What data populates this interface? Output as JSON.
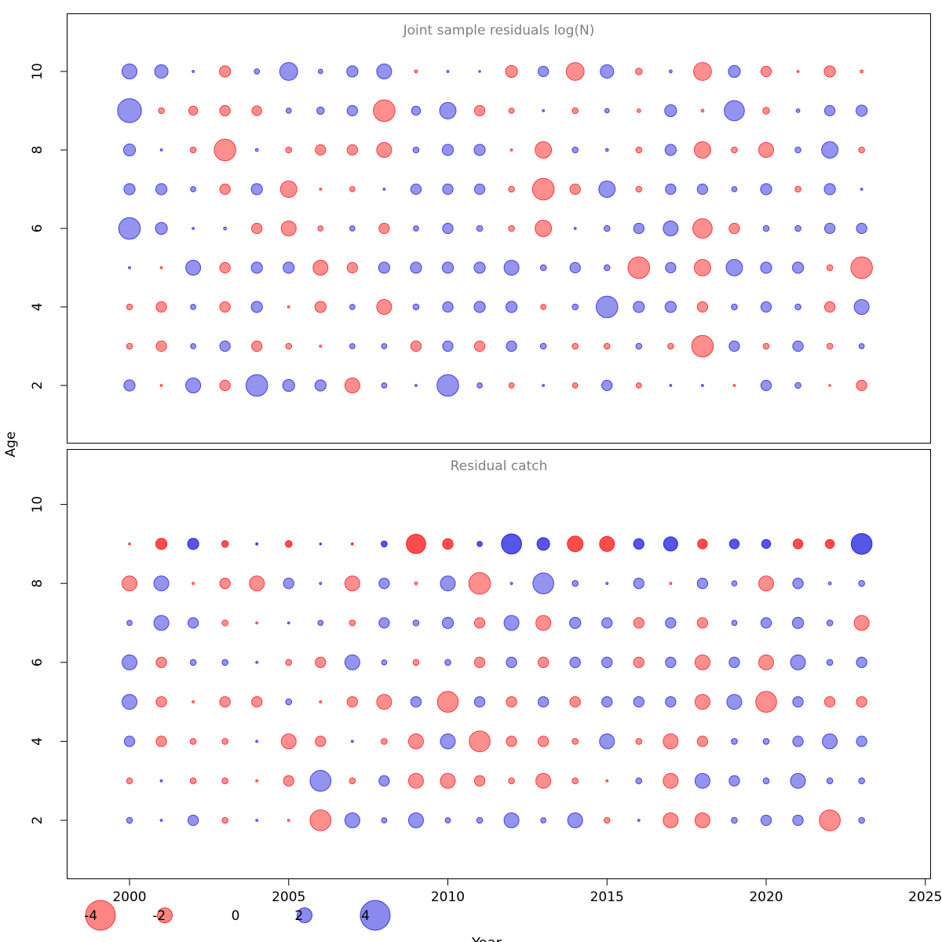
{
  "figure": {
    "ylabel": "Age",
    "xlabel": "Year"
  },
  "style": {
    "negative_color": "#ff2020",
    "positive_color": "#2a2ae0",
    "size_rule": "circle radius proportional to |residual|; red = negative, blue = positive"
  },
  "axes": {
    "x_ticks": [
      2000,
      2005,
      2010,
      2015,
      2020,
      2025
    ],
    "y_ticks": [
      2,
      4,
      6,
      8,
      10
    ]
  },
  "legend": {
    "values": [
      -4,
      -2,
      0,
      2,
      4
    ],
    "labels": [
      "-4",
      "-2",
      "0",
      "2",
      "4"
    ]
  },
  "chart_data": [
    {
      "type": "bubble",
      "title": "Joint sample residuals log(N)",
      "xlabel": "Year",
      "ylabel": "Age",
      "x": [
        2000,
        2001,
        2002,
        2003,
        2004,
        2005,
        2006,
        2007,
        2008,
        2009,
        2010,
        2011,
        2012,
        2013,
        2014,
        2015,
        2016,
        2017,
        2018,
        2019,
        2020,
        2021,
        2022,
        2023
      ],
      "series": [
        {
          "age": 10,
          "values": [
            2.0,
            1.8,
            0.3,
            -1.5,
            0.7,
            2.4,
            0.6,
            1.5,
            2.0,
            -0.4,
            0.3,
            0.2,
            -1.6,
            1.4,
            -2.4,
            1.8,
            -0.9,
            0.4,
            -2.4,
            1.6,
            -1.4,
            -0.3,
            -1.5,
            -0.4
          ]
        },
        {
          "age": 9,
          "values": [
            3.2,
            -0.8,
            -1.2,
            -1.4,
            -1.3,
            0.7,
            1.0,
            1.4,
            -2.9,
            1.2,
            2.2,
            -1.4,
            -0.7,
            0.3,
            -0.8,
            0.6,
            -0.5,
            1.6,
            -0.4,
            2.7,
            -0.9,
            0.5,
            1.4,
            1.5
          ]
        },
        {
          "age": 8,
          "values": [
            1.6,
            0.3,
            -0.8,
            -2.9,
            0.4,
            -0.8,
            -1.4,
            -1.4,
            -2.0,
            0.8,
            1.5,
            1.5,
            -0.3,
            -2.2,
            0.8,
            0.4,
            -0.8,
            1.5,
            -2.2,
            -0.8,
            -2.0,
            0.8,
            2.2,
            -0.8
          ]
        },
        {
          "age": 7,
          "values": [
            1.5,
            1.5,
            0.7,
            -1.4,
            1.5,
            -2.2,
            -0.3,
            -0.7,
            0.3,
            1.4,
            1.4,
            1.4,
            -0.8,
            -2.9,
            -1.4,
            2.2,
            -0.8,
            1.4,
            1.4,
            0.7,
            1.5,
            -0.8,
            1.5,
            0.3
          ]
        },
        {
          "age": 6,
          "values": [
            2.9,
            1.6,
            0.3,
            0.4,
            -1.4,
            -2.0,
            -0.7,
            0.7,
            -1.4,
            0.7,
            1.4,
            0.8,
            -0.8,
            -2.2,
            0.3,
            0.8,
            1.4,
            2.0,
            -2.6,
            -1.4,
            0.8,
            0.8,
            1.4,
            1.4
          ]
        },
        {
          "age": 5,
          "values": [
            0.3,
            -0.3,
            2.0,
            -1.4,
            1.5,
            1.5,
            -2.0,
            -1.4,
            1.5,
            1.5,
            1.5,
            1.5,
            2.0,
            0.8,
            1.4,
            0.8,
            -2.9,
            1.4,
            -2.2,
            2.2,
            1.5,
            1.5,
            -0.8,
            -2.9
          ]
        },
        {
          "age": 4,
          "values": [
            -0.8,
            -1.4,
            0.7,
            -1.4,
            1.5,
            -0.3,
            -1.5,
            0.7,
            -2.0,
            0.8,
            1.4,
            1.5,
            1.5,
            -0.7,
            0.8,
            2.9,
            1.5,
            1.5,
            -1.4,
            0.8,
            1.4,
            0.8,
            -1.4,
            2.0
          ]
        },
        {
          "age": 3,
          "values": [
            -0.8,
            -1.4,
            0.7,
            1.4,
            -1.4,
            -0.8,
            -0.3,
            0.7,
            0.7,
            -1.4,
            1.4,
            -1.4,
            1.4,
            0.8,
            -0.8,
            -0.8,
            0.8,
            -0.8,
            -2.9,
            1.4,
            -0.8,
            1.4,
            -0.8,
            0.7
          ]
        },
        {
          "age": 2,
          "values": [
            1.5,
            -0.3,
            2.0,
            -1.4,
            2.9,
            1.6,
            1.5,
            -2.0,
            0.7,
            0.3,
            2.9,
            0.7,
            -0.7,
            0.3,
            -0.7,
            1.4,
            -0.7,
            0.3,
            0.3,
            -0.3,
            1.4,
            0.8,
            -0.1,
            -1.4
          ]
        }
      ]
    },
    {
      "type": "bubble",
      "title": "Residual catch",
      "xlabel": "Year",
      "ylabel": "Age",
      "x": [
        2000,
        2001,
        2002,
        2003,
        2004,
        2005,
        2006,
        2007,
        2008,
        2009,
        2010,
        2011,
        2012,
        2013,
        2014,
        2015,
        2016,
        2017,
        2018,
        2019,
        2020,
        2021,
        2022,
        2023
      ],
      "series": [
        {
          "age": 9,
          "emphasis": true,
          "values": [
            -0.2,
            -1.5,
            1.5,
            -0.9,
            0.3,
            -0.9,
            0.1,
            -0.3,
            0.8,
            -2.6,
            -1.4,
            0.7,
            2.7,
            1.7,
            -2.1,
            -2.0,
            1.4,
            1.9,
            -1.3,
            1.3,
            1.2,
            -1.3,
            -1.2,
            2.8
          ]
        },
        {
          "age": 8,
          "values": [
            -2.0,
            2.0,
            -0.3,
            -1.4,
            -2.0,
            1.4,
            0.3,
            -2.0,
            1.4,
            -0.4,
            2.0,
            -2.9,
            0.3,
            2.8,
            0.8,
            0.3,
            1.4,
            -0.3,
            1.4,
            0.7,
            -2.0,
            1.4,
            0.4,
            0.8
          ]
        },
        {
          "age": 7,
          "values": [
            0.7,
            2.0,
            1.4,
            -0.8,
            -0.3,
            0.3,
            0.7,
            -0.8,
            1.4,
            0.8,
            1.5,
            -1.4,
            2.0,
            -2.0,
            1.5,
            1.4,
            -1.4,
            1.4,
            -1.4,
            0.7,
            1.4,
            1.5,
            0.8,
            -2.0
          ]
        },
        {
          "age": 6,
          "values": [
            2.0,
            -1.4,
            0.8,
            0.8,
            0.3,
            -0.8,
            -1.4,
            2.0,
            0.7,
            -0.8,
            0.8,
            -1.4,
            1.4,
            -1.4,
            1.4,
            1.4,
            -1.4,
            1.4,
            -2.0,
            1.4,
            -2.0,
            2.0,
            0.8,
            1.4
          ]
        },
        {
          "age": 5,
          "values": [
            2.0,
            -1.4,
            -0.3,
            -1.4,
            -1.4,
            0.8,
            -0.3,
            -1.4,
            -2.0,
            1.4,
            -2.8,
            1.4,
            -1.4,
            1.4,
            -1.4,
            1.4,
            1.4,
            1.4,
            -2.0,
            2.0,
            -2.8,
            1.4,
            -1.4,
            -1.4
          ]
        },
        {
          "age": 4,
          "values": [
            1.4,
            -1.4,
            -0.8,
            -0.8,
            0.3,
            -2.0,
            -1.4,
            0.3,
            -0.8,
            -2.0,
            2.0,
            -2.8,
            -1.4,
            -1.4,
            -0.8,
            2.0,
            -0.8,
            -2.0,
            -1.4,
            0.8,
            0.8,
            1.4,
            2.0,
            1.4
          ]
        },
        {
          "age": 3,
          "values": [
            -0.8,
            0.3,
            -0.8,
            -0.8,
            -0.3,
            -1.4,
            2.8,
            -0.8,
            1.4,
            -2.0,
            -2.0,
            -1.4,
            -0.8,
            -2.0,
            -0.8,
            -0.3,
            0.8,
            -2.0,
            2.0,
            1.4,
            0.8,
            2.0,
            0.8,
            0.8
          ]
        },
        {
          "age": 2,
          "values": [
            0.8,
            0.3,
            1.4,
            -0.8,
            0.3,
            -0.3,
            -2.8,
            2.0,
            0.7,
            2.0,
            0.7,
            0.8,
            2.0,
            0.7,
            2.0,
            -0.8,
            0.3,
            -2.0,
            -2.0,
            0.8,
            1.4,
            1.4,
            -2.8,
            0.8
          ]
        }
      ]
    }
  ]
}
